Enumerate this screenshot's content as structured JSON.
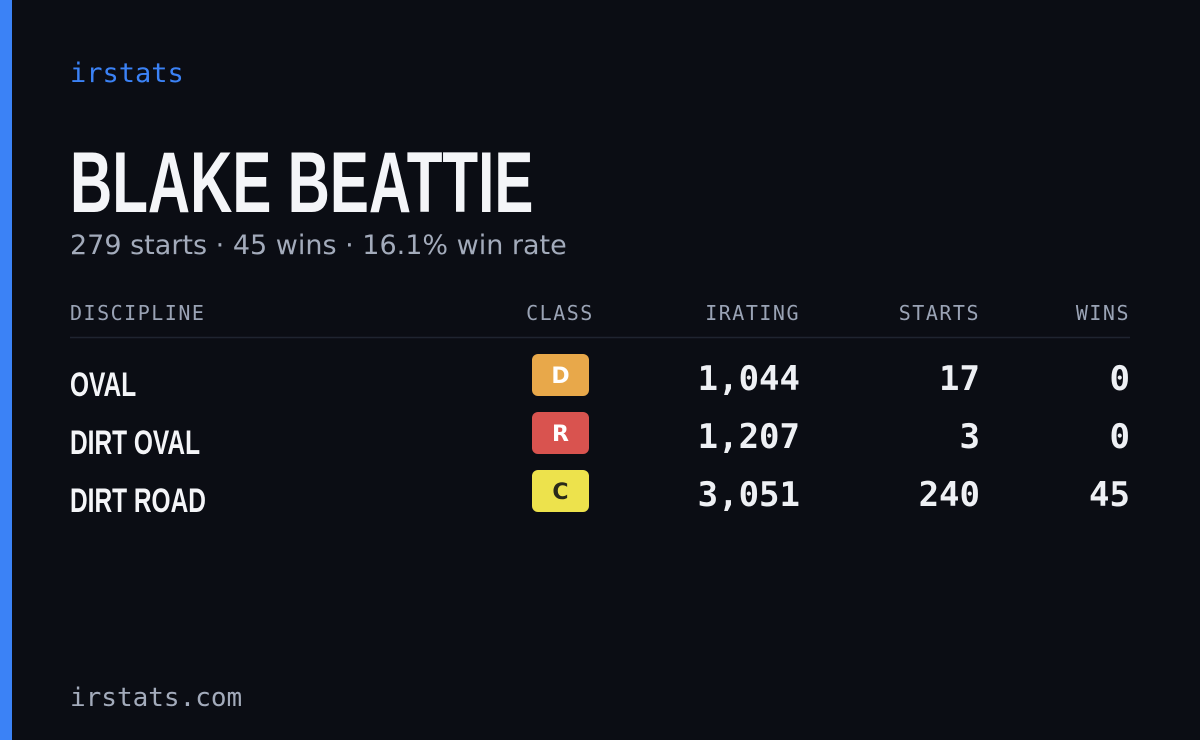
{
  "brand": "irstats",
  "name": "BLAKE BEATTIE",
  "summary": "279 starts · 45 wins · 16.1% win rate",
  "table": {
    "headers": [
      "DISCIPLINE",
      "CLASS",
      "IRATING",
      "STARTS",
      "WINS"
    ],
    "rows": [
      [
        "OVAL",
        "D",
        "1,044",
        "17",
        "0"
      ],
      [
        "DIRT OVAL",
        "R",
        "1,207",
        "3",
        "0"
      ],
      [
        "DIRT ROAD",
        "C",
        "3,051",
        "240",
        "45"
      ]
    ]
  },
  "footer": "irstats.com"
}
